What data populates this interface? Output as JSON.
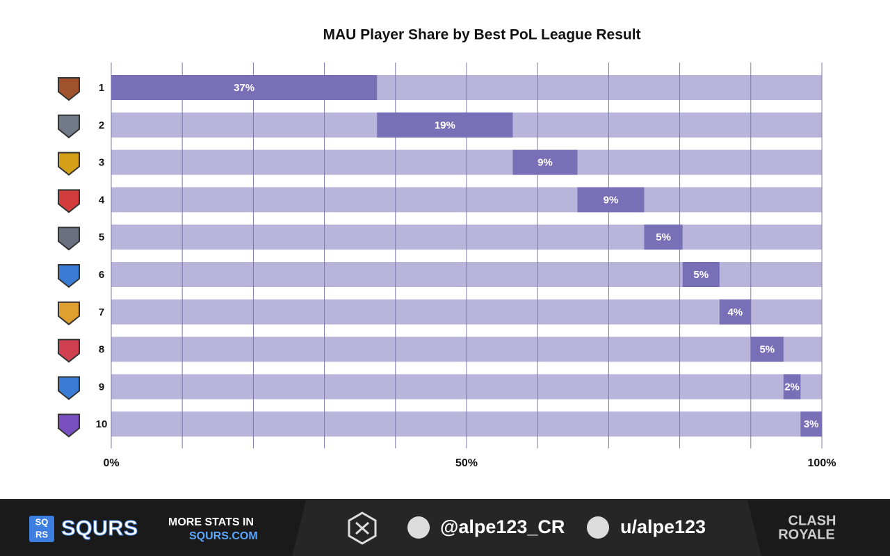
{
  "chart_data": {
    "type": "waterfall-bar",
    "title": "MAU Player Share by Best PoL League Result",
    "categories": [
      "1",
      "2",
      "3",
      "4",
      "5",
      "6",
      "7",
      "8",
      "9",
      "10"
    ],
    "values": [
      37.4,
      19.1,
      9.1,
      9.4,
      5.4,
      5.2,
      4.4,
      4.6,
      2.4,
      3.0
    ],
    "value_labels": [
      "37%",
      "19%",
      "9%",
      "9%",
      "5%",
      "5%",
      "4%",
      "5%",
      "2%",
      "3%"
    ],
    "color": "#7770b7",
    "track_color": "#b9b4da",
    "xlim": [
      0,
      100
    ],
    "xticks": [
      {
        "value": 0,
        "label": "0%"
      },
      {
        "value": 50,
        "label": "50%"
      },
      {
        "value": 100,
        "label": "100%"
      }
    ],
    "xgrid": [
      0,
      10,
      20,
      30,
      40,
      50,
      60,
      70,
      80,
      90,
      100
    ],
    "grid": true
  },
  "footer": {
    "logo_top": "SQ",
    "logo_bottom": "RS",
    "brand": "SQURS",
    "promo": "MORE STATS IN",
    "site": "SQURS.COM",
    "twitter": "@alpe123_CR",
    "reddit": "u/alpe123",
    "game_top": "CLASH",
    "game_bottom": "ROYALE"
  }
}
